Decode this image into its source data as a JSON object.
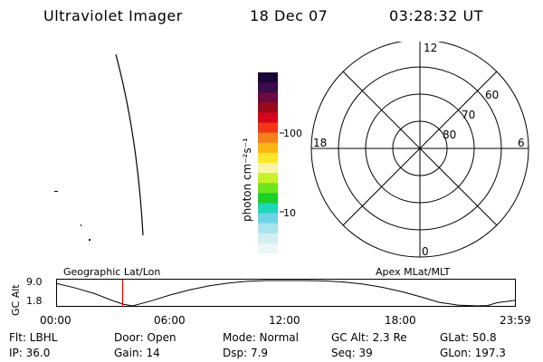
{
  "header": {
    "instrument": "Ultraviolet Imager",
    "date": "18 Dec 07",
    "time": "03:28:32 UT"
  },
  "colorbar": {
    "unit_label": "photon cm⁻²s⁻¹",
    "tick_labels": [
      "100",
      "10"
    ],
    "colors": [
      "#1a0633",
      "#3a0a4a",
      "#6b0b3f",
      "#9a0a1a",
      "#d4061a",
      "#f33519",
      "#f6801a",
      "#fbb614",
      "#fde72b",
      "#f7f4a3",
      "#c6f22a",
      "#6ee51a",
      "#1ccf2a",
      "#20d6b8",
      "#6fd3e8",
      "#a9e3ee",
      "#d3eef2",
      "#edf6f8"
    ]
  },
  "polar_plot": {
    "mlt_labels": {
      "top": "12",
      "bottom": "0",
      "left": "18",
      "right": "6"
    },
    "mlat_labels": [
      "60",
      "70",
      "80"
    ]
  },
  "timeline": {
    "left_title": "Geographic Lat/Lon",
    "right_title": "Apex MLat/MLT",
    "y_axis_title": "GC Alt",
    "y_ticks": [
      "9.0",
      "1.8"
    ],
    "x_ticks": [
      "00:00",
      "06:00",
      "12:00",
      "18:00",
      "23:59"
    ],
    "current_marker_color": "#e00000"
  },
  "status": {
    "filter": "Flt: LBHL",
    "ip": "IP: 36.0",
    "door": "Door: Open",
    "gain": "Gain: 14",
    "mode": "Mode: Normal",
    "dsp": "Dsp:    7.9",
    "gc_alt": "GC Alt: 2.3 Re",
    "seq": "Seq: 39",
    "glat": "GLat:  50.8",
    "glon": "GLon: 197.3"
  },
  "chart_data": {
    "type": "line",
    "title": "",
    "xlabel": "",
    "ylabel": "GC Alt",
    "x": [
      0,
      1,
      2,
      3,
      3.5,
      4,
      5,
      6,
      7,
      8,
      9,
      10,
      11,
      12,
      13,
      14,
      15,
      16,
      17,
      18,
      19,
      20,
      21,
      22,
      22.5,
      23,
      23.98
    ],
    "y": [
      8.2,
      6.9,
      5.3,
      3.2,
      2.3,
      1.8,
      3.3,
      5.0,
      6.4,
      7.5,
      8.3,
      8.8,
      9.0,
      9.0,
      9.0,
      8.9,
      8.6,
      8.0,
      7.1,
      5.9,
      4.4,
      2.8,
      2.0,
      1.8,
      1.9,
      2.7,
      3.4
    ],
    "xlim": [
      0,
      23.98
    ],
    "ylim": [
      1.8,
      9.0
    ],
    "marker_x": 3.47
  }
}
